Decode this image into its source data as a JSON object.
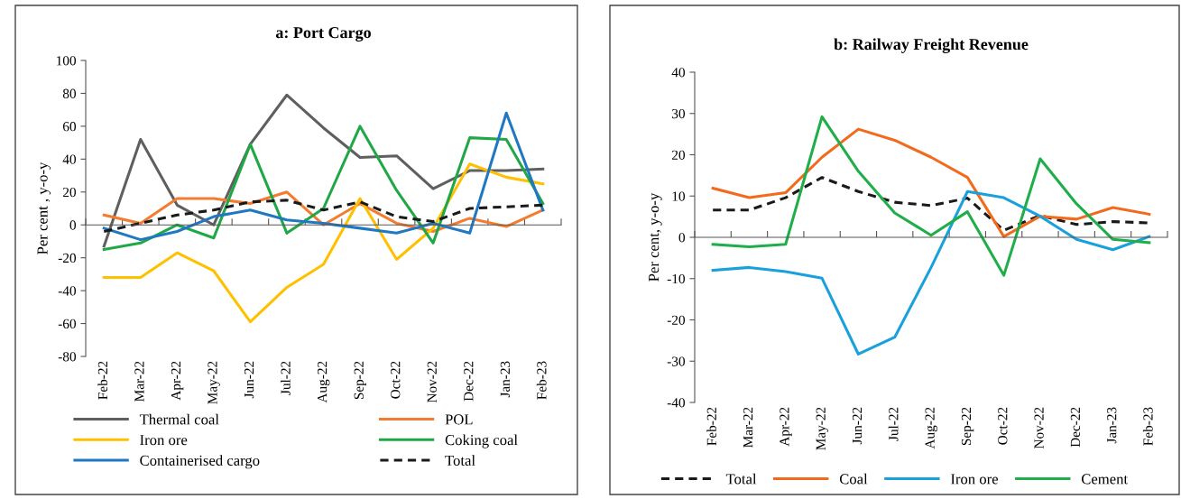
{
  "chart_data": [
    {
      "type": "line",
      "title": "a: Port Cargo",
      "ylabel": "Per cent , y-o-y",
      "categories": [
        "Feb-22",
        "Mar-22",
        "Apr-22",
        "May-22",
        "Jun-22",
        "Jul-22",
        "Aug-22",
        "Sep-22",
        "Oct-22",
        "Nov-22",
        "Dec-22",
        "Jan-23",
        "Feb-23"
      ],
      "ylim": [
        -80,
        100
      ],
      "yticks": [
        -80,
        -60,
        -40,
        -20,
        0,
        20,
        40,
        60,
        80,
        100
      ],
      "legend": "bottom",
      "series": [
        {
          "name": "Thermal coal",
          "color": "#5f5f5f",
          "values": [
            -13,
            52,
            12,
            0,
            49,
            79,
            59,
            41,
            42,
            22,
            33,
            33,
            34
          ]
        },
        {
          "name": "POL",
          "color": "#f47c30",
          "values": [
            6,
            1,
            16,
            16,
            13,
            20,
            0,
            13,
            1,
            -4,
            4,
            -1,
            9
          ]
        },
        {
          "name": "Iron ore",
          "color": "#ffc000",
          "values": [
            -32,
            -32,
            -17,
            -28,
            -59,
            -38,
            -24,
            16,
            -21,
            -2,
            37,
            29,
            25
          ]
        },
        {
          "name": "Coking coal",
          "color": "#21a846",
          "values": [
            -15,
            -11,
            0,
            -8,
            49,
            -5,
            10,
            60,
            21,
            -11,
            53,
            52,
            13
          ]
        },
        {
          "name": "Containerised cargo",
          "color": "#1f78c1",
          "values": [
            -2,
            -9,
            -4,
            5,
            9,
            3,
            1,
            -2,
            -5,
            1,
            -5,
            68,
            9
          ]
        },
        {
          "name": "Total",
          "color": "#1a1a1a",
          "line_style": "dashed",
          "values": [
            -4,
            1,
            6,
            9,
            14,
            15,
            9,
            14,
            5,
            2,
            10,
            11,
            12
          ]
        }
      ]
    },
    {
      "type": "line",
      "title": "b: Railway Freight Revenue",
      "ylabel": "Per cent, y-o-y",
      "categories": [
        "Feb-22",
        "Mar-22",
        "Apr-22",
        "May-22",
        "Jun-22",
        "Jul-22",
        "Aug-22",
        "Sep-22",
        "Oct-22",
        "Nov-22",
        "Dec-22",
        "Jan-23",
        "Feb-23"
      ],
      "ylim": [
        -40,
        40
      ],
      "yticks": [
        -40,
        -30,
        -20,
        -10,
        0,
        10,
        20,
        30,
        40
      ],
      "legend": "bottom",
      "series": [
        {
          "name": "Total",
          "color": "#1a1a1a",
          "line_style": "dashed",
          "values": [
            6.6,
            6.6,
            9.6,
            14.5,
            11.1,
            8.5,
            7.7,
            9.5,
            1.7,
            5.3,
            3.1,
            3.8,
            3.5
          ]
        },
        {
          "name": "Coal",
          "color": "#f26b1d",
          "values": [
            11.9,
            9.6,
            10.8,
            19.4,
            26.2,
            23.5,
            19.4,
            14.5,
            0.2,
            5.1,
            4.4,
            7.2,
            5.6
          ]
        },
        {
          "name": "Iron ore",
          "color": "#1aa0dc",
          "values": [
            -8,
            -7.3,
            -8.3,
            -9.9,
            -28.3,
            -24.2,
            -7.3,
            11.1,
            9.6,
            5.1,
            -0.5,
            -3,
            0.2
          ]
        },
        {
          "name": "Cement",
          "color": "#1fae4a",
          "values": [
            -1.7,
            -2.3,
            -1.7,
            29.2,
            16,
            5.9,
            0.5,
            6.2,
            -9.2,
            19,
            8.1,
            -0.5,
            -1.3
          ]
        }
      ]
    }
  ]
}
